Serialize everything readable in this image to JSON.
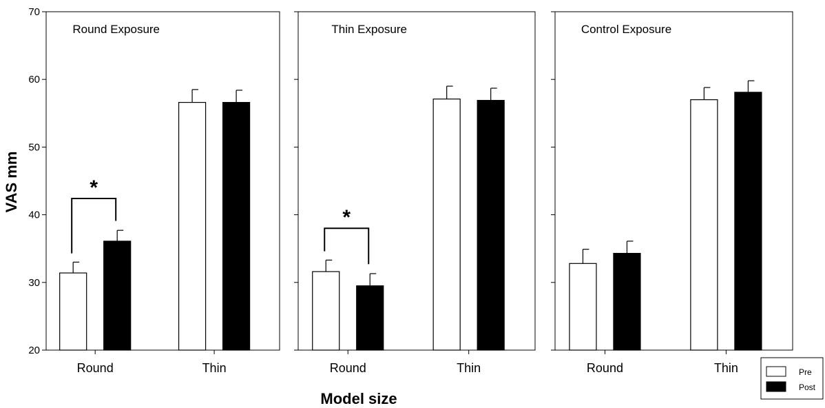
{
  "chart_data": {
    "type": "bar",
    "ylabel": "VAS mm",
    "xlabel": "Model size",
    "ylim": [
      20,
      70
    ],
    "yticks": [
      20,
      30,
      40,
      50,
      60,
      70
    ],
    "categories": [
      "Round",
      "Thin"
    ],
    "legend": {
      "position": "bottom-right",
      "entries": [
        "Pre",
        "Post"
      ]
    },
    "colors": {
      "Pre": "#ffffff",
      "Post": "#000000"
    },
    "panels": [
      {
        "title": "Round Exposure",
        "series": [
          {
            "name": "Pre",
            "values": [
              31.4,
              56.6
            ],
            "errors": [
              1.6,
              1.9
            ]
          },
          {
            "name": "Post",
            "values": [
              36.1,
              56.6
            ],
            "errors": [
              1.6,
              1.8
            ]
          }
        ],
        "significance": {
          "category": "Round",
          "label": "*"
        }
      },
      {
        "title": "Thin Exposure",
        "series": [
          {
            "name": "Pre",
            "values": [
              31.6,
              57.1
            ],
            "errors": [
              1.7,
              1.9
            ]
          },
          {
            "name": "Post",
            "values": [
              29.5,
              56.9
            ],
            "errors": [
              1.8,
              1.8
            ]
          }
        ],
        "significance": {
          "category": "Round",
          "label": "*"
        }
      },
      {
        "title": "Control Exposure",
        "series": [
          {
            "name": "Pre",
            "values": [
              32.8,
              57.0
            ],
            "errors": [
              2.1,
              1.8
            ]
          },
          {
            "name": "Post",
            "values": [
              34.3,
              58.1
            ],
            "errors": [
              1.8,
              1.7
            ]
          }
        ],
        "significance": null
      }
    ]
  }
}
